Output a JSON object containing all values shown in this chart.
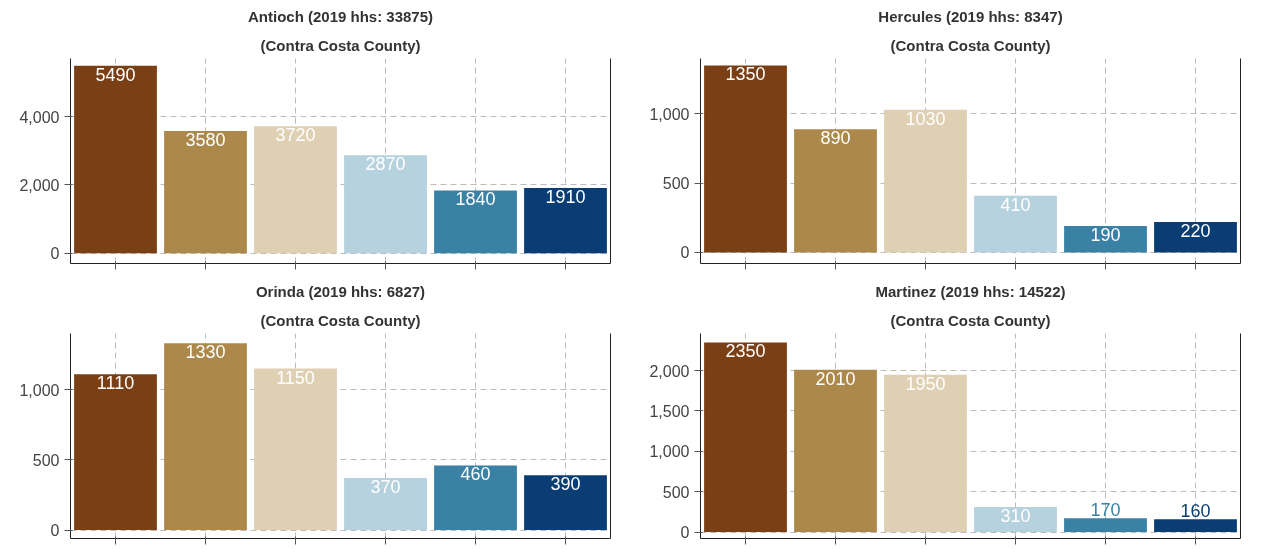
{
  "chart_data": [
    {
      "type": "bar",
      "title": "Antioch (2019 hhs: 33875)",
      "subtitle": "(Contra Costa County)",
      "categories": [
        null,
        null,
        null,
        null,
        null,
        null
      ],
      "values": [
        5490,
        3580,
        3720,
        2870,
        1840,
        1910
      ],
      "colors": [
        "#7b3f16",
        "#ac894a",
        "#dfd0b3",
        "#b5d2de",
        "#3a81a6",
        "#0a3d74"
      ],
      "ylim": [
        -300,
        5700
      ],
      "yticks": [
        {
          "value": 0,
          "label": "0"
        },
        {
          "value": 2000,
          "label": "2,000"
        },
        {
          "value": 4000,
          "label": "4,000"
        }
      ],
      "grid": true,
      "data_labels": true
    },
    {
      "type": "bar",
      "title": "Hercules (2019 hhs: 8347)",
      "subtitle": "(Contra Costa County)",
      "categories": [
        null,
        null,
        null,
        null,
        null,
        null
      ],
      "values": [
        1350,
        890,
        1030,
        410,
        190,
        220
      ],
      "colors": [
        "#7b3f16",
        "#ac894a",
        "#dfd0b3",
        "#b5d2de",
        "#3a81a6",
        "#0a3d74"
      ],
      "ylim": [
        -80,
        1400
      ],
      "yticks": [
        {
          "value": 0,
          "label": "0"
        },
        {
          "value": 500,
          "label": "500"
        },
        {
          "value": 1000,
          "label": "1,000"
        }
      ],
      "grid": true,
      "data_labels": true
    },
    {
      "type": "bar",
      "title": "Orinda (2019 hhs: 6827)",
      "subtitle": "(Contra Costa County)",
      "categories": [
        null,
        null,
        null,
        null,
        null,
        null
      ],
      "values": [
        1110,
        1330,
        1150,
        370,
        460,
        390
      ],
      "colors": [
        "#7b3f16",
        "#ac894a",
        "#dfd0b3",
        "#b5d2de",
        "#3a81a6",
        "#0a3d74"
      ],
      "ylim": [
        -60,
        1400
      ],
      "yticks": [
        {
          "value": 0,
          "label": "0"
        },
        {
          "value": 500,
          "label": "500"
        },
        {
          "value": 1000,
          "label": "1,000"
        }
      ],
      "grid": true,
      "data_labels": true
    },
    {
      "type": "bar",
      "title": "Martinez (2019 hhs: 14522)",
      "subtitle": "(Contra Costa County)",
      "categories": [
        null,
        null,
        null,
        null,
        null,
        null
      ],
      "values": [
        2350,
        2010,
        1950,
        310,
        170,
        160
      ],
      "colors": [
        "#7b3f16",
        "#ac894a",
        "#dfd0b3",
        "#b5d2de",
        "#3a81a6",
        "#0a3d74"
      ],
      "ylim": [
        -80,
        2460
      ],
      "yticks": [
        {
          "value": 0,
          "label": "0"
        },
        {
          "value": 500,
          "label": "500"
        },
        {
          "value": 1000,
          "label": "1,000"
        },
        {
          "value": 1500,
          "label": "1,500"
        },
        {
          "value": 2000,
          "label": "2,000"
        }
      ],
      "grid": true,
      "data_labels": true
    }
  ]
}
